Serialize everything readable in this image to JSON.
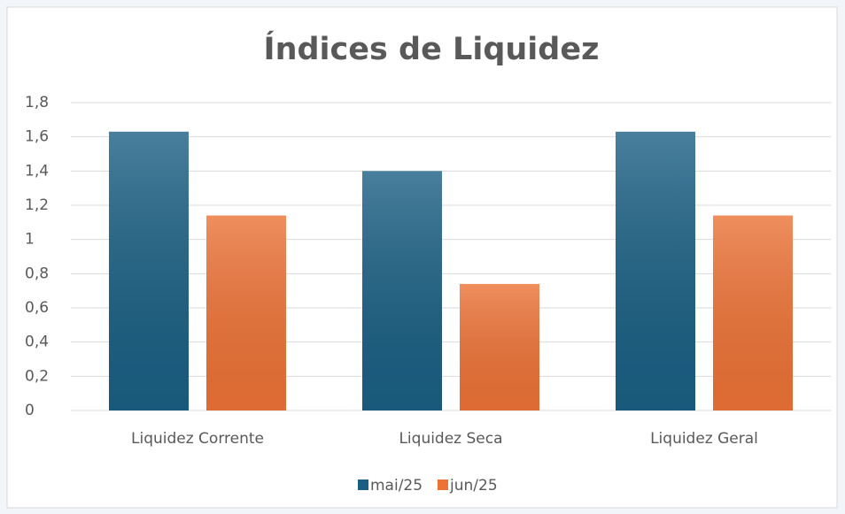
{
  "chart_data": {
    "type": "bar",
    "title": "Índices de Liquidez",
    "categories": [
      "Liquidez Corrente",
      "Liquidez Seca",
      "Liquidez Geral"
    ],
    "series": [
      {
        "name": "mai/25",
        "color": "#1a5f83",
        "values": [
          1.63,
          1.4,
          1.63
        ]
      },
      {
        "name": "jun/25",
        "color": "#ec7236",
        "values": [
          1.14,
          0.74,
          1.14
        ]
      }
    ],
    "ylim": [
      0,
      1.8
    ],
    "yticks": [
      0,
      {
        "value": 0.2,
        "label": "0,2"
      },
      {
        "value": 0.4,
        "label": "0,4"
      },
      {
        "value": 0.6,
        "label": "0,6"
      },
      {
        "value": 0.8,
        "label": "0,8"
      },
      1,
      {
        "value": 1.2,
        "label": "1,2"
      },
      {
        "value": 1.4,
        "label": "1,4"
      },
      {
        "value": 1.6,
        "label": "1,6"
      },
      {
        "value": 1.8,
        "label": "1,8"
      }
    ],
    "grid": true,
    "legend": "bottom"
  }
}
